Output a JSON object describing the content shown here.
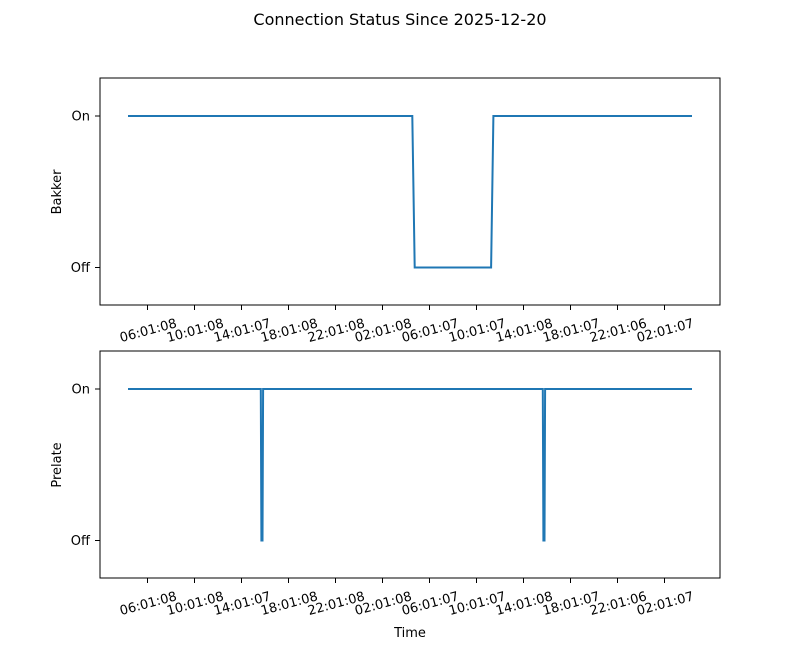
{
  "chart_data": {
    "title": "Connection Status Since 2025-12-20",
    "type": "line",
    "x_tick_labels": [
      "06:01:08",
      "10:01:08",
      "14:01:07",
      "18:01:08",
      "22:01:08",
      "02:01:08",
      "06:01:07",
      "10:01:07",
      "14:01:08",
      "18:01:07",
      "22:01:06",
      "02:01:07"
    ],
    "xlabel": "Time",
    "colors": {
      "line": "#1f77b4"
    },
    "grid": false,
    "subplots": [
      {
        "ylabel": "Bakker",
        "y_tick_labels": [
          "Off",
          "On"
        ],
        "x_hours": [
          0,
          24.2,
          24.4,
          30.9,
          31.1,
          48
        ],
        "y": [
          1,
          1,
          0,
          0,
          1,
          1
        ]
      },
      {
        "ylabel": "Prelate",
        "y_tick_labels": [
          "Off",
          "On"
        ],
        "x_hours": [
          0,
          11.3,
          11.35,
          11.45,
          11.5,
          35.3,
          35.35,
          35.45,
          35.5,
          48
        ],
        "y": [
          1,
          1,
          0,
          0,
          1,
          1,
          0,
          0,
          1,
          1
        ]
      }
    ]
  }
}
